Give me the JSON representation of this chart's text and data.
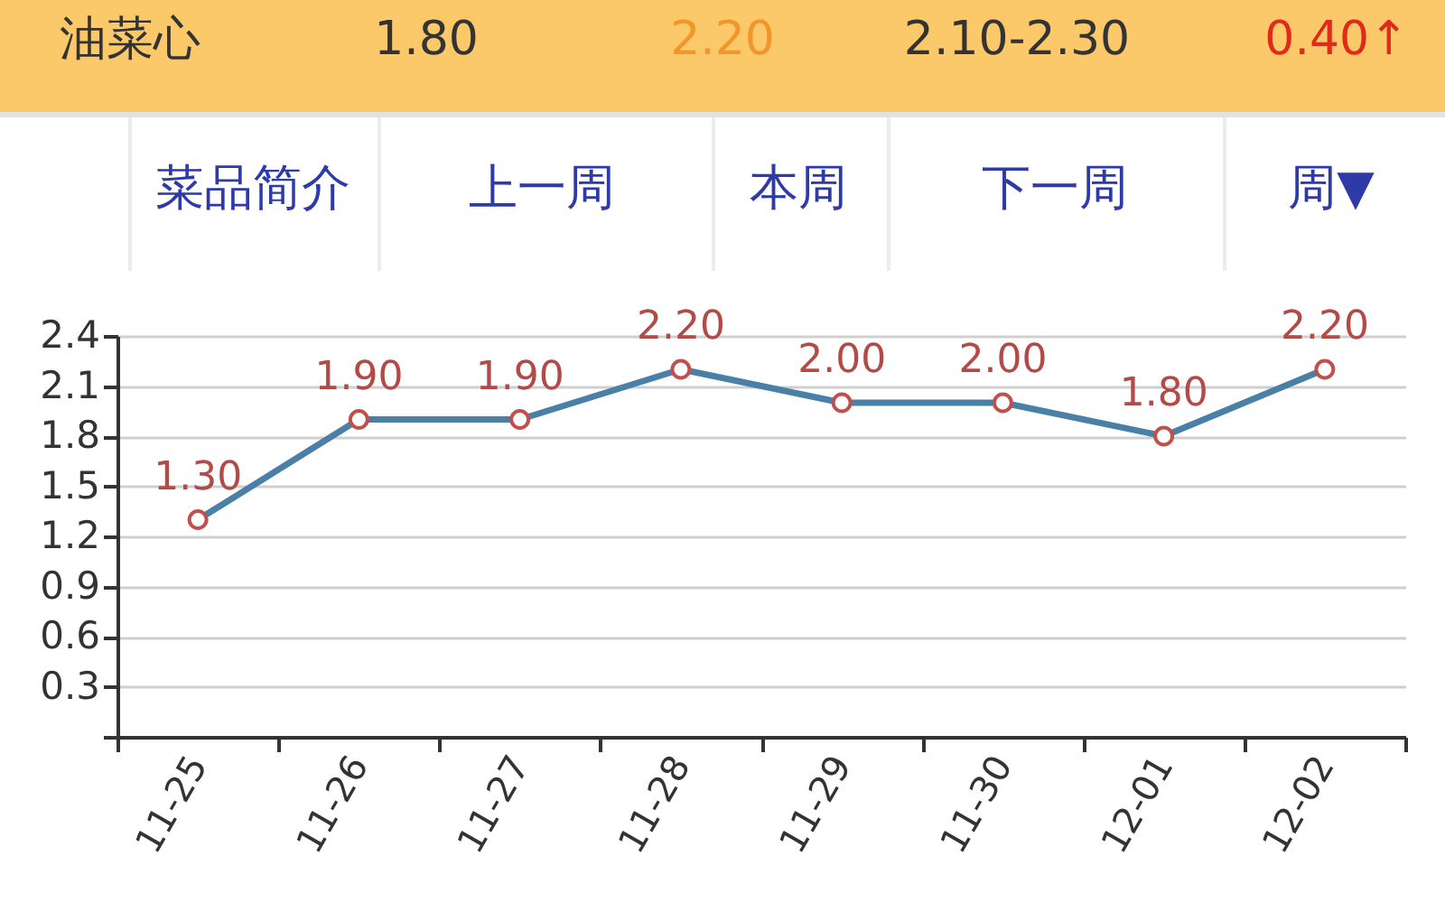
{
  "chart_data": {
    "type": "line",
    "annotations": [
      "油菜心",
      "1.80",
      "2.20",
      "2.10-2.30",
      "0.40↑",
      "菜品简介",
      "上一周",
      "本周",
      "下一周",
      "周▼"
    ],
    "categories": [
      "11-25",
      "11-26",
      "11-27",
      "11-28",
      "11-29",
      "11-30",
      "12-01",
      "12-02"
    ],
    "values": [
      1.3,
      1.9,
      1.9,
      2.2,
      2.0,
      2.0,
      1.8,
      2.2
    ],
    "value_labels": [
      "1.30",
      "1.90",
      "1.90",
      "2.20",
      "2.00",
      "2.00",
      "1.80",
      "2.20"
    ],
    "color": "#4a7fa8",
    "ylim": [
      0,
      2.4
    ],
    "yticks": [
      {
        "value": 0,
        "label": null
      },
      0.3,
      0.6,
      0.9,
      1.2,
      1.5,
      1.8,
      2.1,
      2.4
    ],
    "grid": "y",
    "marker": "circle",
    "line_style": "solid"
  }
}
